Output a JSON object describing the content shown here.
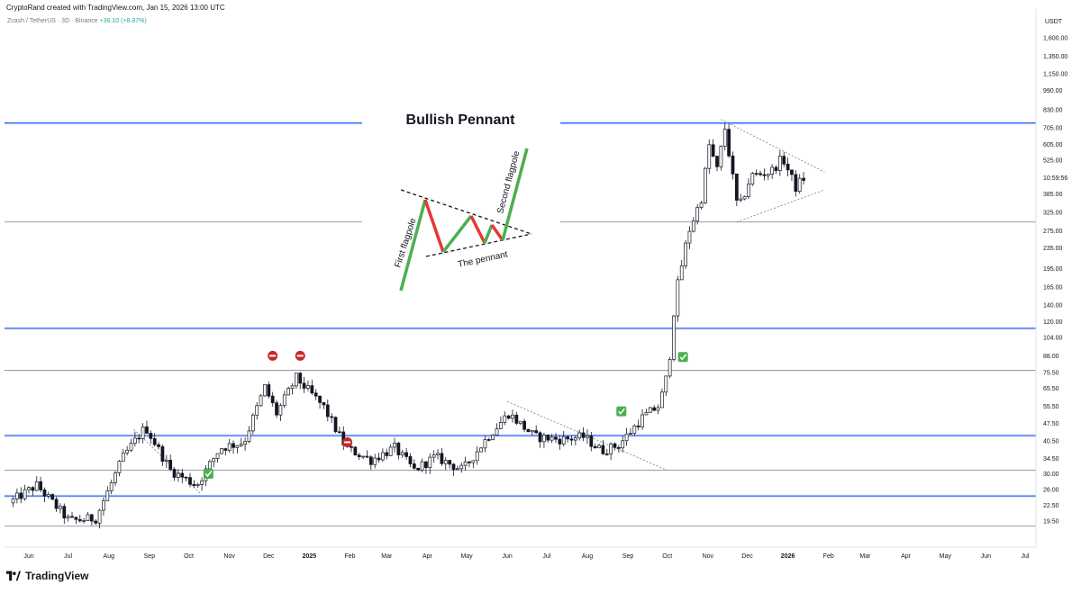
{
  "header": {
    "credit": "CryptoRand created with TradingView.com, Jan 15, 2026 13:00 UTC",
    "symbol": "Zcash / TetherUS · 3D · Binance",
    "change": "+36.10 (+8.87%)"
  },
  "footer": {
    "logo_text": "TradingView"
  },
  "annotation": {
    "title": "Bullish Pennant",
    "first_flagpole": "First flagpole",
    "second_flagpole": "Second flagpole",
    "pennant": "The pennant"
  },
  "colors": {
    "up_candle": "#ffffff",
    "down_candle": "#131722",
    "blue_level": "#2962ff",
    "gray_level": "#787b86",
    "flagpole_green": "#4caf50",
    "pennant_red": "#e53935",
    "marker_red": "#c62828",
    "check_green": "#4caf50"
  },
  "chart_data": {
    "type": "candlestick",
    "symbol": "Zcash / TetherUS",
    "interval": "3D",
    "exchange": "Binance",
    "currency_label": "USDT",
    "scale": "log",
    "ylim": [
      17,
      1850
    ],
    "price_ticks": [
      "1,600.00",
      "1,350.00",
      "1,150.00",
      "990.00",
      "830.00",
      "705.00",
      "605.00",
      "525.00",
      "10:59:56",
      "385.00",
      "325.00",
      "275.00",
      "235.00",
      "195.00",
      "165.00",
      "140.00",
      "120.00",
      "104.00",
      "88.00",
      "75.50",
      "65.50",
      "55.50",
      "47.50",
      "40.50",
      "34.50",
      "30.00",
      "26.00",
      "22.50",
      "19.50"
    ],
    "price_tick_values": [
      1600,
      1350,
      1150,
      990,
      830,
      705,
      605,
      525,
      447,
      385,
      325,
      275,
      235,
      195,
      165,
      140,
      120,
      104,
      88,
      75.5,
      65.5,
      55.5,
      47.5,
      40.5,
      34.5,
      30,
      26,
      22.5,
      19.5
    ],
    "time_ticks": [
      {
        "label": "Jun",
        "date": "2024-06-01"
      },
      {
        "label": "Jul",
        "date": "2024-07-01"
      },
      {
        "label": "Aug",
        "date": "2024-08-01"
      },
      {
        "label": "Sep",
        "date": "2024-09-01"
      },
      {
        "label": "Oct",
        "date": "2024-10-01"
      },
      {
        "label": "Nov",
        "date": "2024-11-01"
      },
      {
        "label": "Dec",
        "date": "2024-12-01"
      },
      {
        "label": "2025",
        "date": "2025-01-01",
        "bold": true
      },
      {
        "label": "Feb",
        "date": "2025-02-01"
      },
      {
        "label": "Mar",
        "date": "2025-03-01"
      },
      {
        "label": "Apr",
        "date": "2025-04-01"
      },
      {
        "label": "May",
        "date": "2025-05-01"
      },
      {
        "label": "Jun",
        "date": "2025-06-01"
      },
      {
        "label": "Jul",
        "date": "2025-07-01"
      },
      {
        "label": "Aug",
        "date": "2025-08-01"
      },
      {
        "label": "Sep",
        "date": "2025-09-01"
      },
      {
        "label": "Oct",
        "date": "2025-10-01"
      },
      {
        "label": "Nov",
        "date": "2025-11-01"
      },
      {
        "label": "Dec",
        "date": "2025-12-01"
      },
      {
        "label": "2026",
        "date": "2026-01-01",
        "bold": true
      },
      {
        "label": "Feb",
        "date": "2026-02-01"
      },
      {
        "label": "Mar",
        "date": "2026-03-01"
      },
      {
        "label": "Apr",
        "date": "2026-04-01"
      },
      {
        "label": "May",
        "date": "2026-05-01"
      },
      {
        "label": "Jun",
        "date": "2026-06-01"
      },
      {
        "label": "Jul",
        "date": "2026-07-01"
      }
    ],
    "horizontal_levels": [
      {
        "price": 735,
        "style": "blue",
        "scope": "split"
      },
      {
        "price": 298,
        "style": "gray",
        "scope": "split"
      },
      {
        "price": 113,
        "style": "blue",
        "scope": "full"
      },
      {
        "price": 77,
        "style": "gray",
        "scope": "full"
      },
      {
        "price": 42.5,
        "style": "blue",
        "scope": "full"
      },
      {
        "price": 31,
        "style": "gray",
        "scope": "full"
      },
      {
        "price": 24.5,
        "style": "blue",
        "scope": "full"
      },
      {
        "price": 18.6,
        "style": "gray",
        "scope": "full"
      }
    ],
    "trendlines": [
      {
        "from": [
          "2024-08-20",
          45
        ],
        "to": [
          "2024-10-10",
          25
        ]
      },
      {
        "from": [
          "2025-06-01",
          58
        ],
        "to": [
          "2025-10-01",
          31
        ]
      },
      {
        "from": [
          "2025-11-11",
          760
        ],
        "to": [
          "2026-01-29",
          470
        ]
      },
      {
        "from": [
          "2025-11-23",
          298
        ],
        "to": [
          "2026-01-29",
          400
        ]
      }
    ],
    "markers": [
      {
        "type": "sell",
        "date": "2024-12-04",
        "price": 88
      },
      {
        "type": "sell",
        "date": "2024-12-25",
        "price": 88
      },
      {
        "type": "sell",
        "date": "2025-01-30",
        "price": 40
      },
      {
        "type": "buy",
        "date": "2024-10-16",
        "price": 30
      },
      {
        "type": "buy",
        "date": "2025-08-27",
        "price": 53
      },
      {
        "type": "buy",
        "date": "2025-10-13",
        "price": 87
      }
    ],
    "anchors": [
      [
        "2024-05-20",
        23
      ],
      [
        "2024-06-10",
        27
      ],
      [
        "2024-07-05",
        19.5
      ],
      [
        "2024-07-25",
        20
      ],
      [
        "2024-08-15",
        35
      ],
      [
        "2024-09-01",
        46
      ],
      [
        "2024-09-20",
        31
      ],
      [
        "2024-10-10",
        27
      ],
      [
        "2024-10-28",
        38
      ],
      [
        "2024-11-15",
        40
      ],
      [
        "2024-12-01",
        66
      ],
      [
        "2024-12-10",
        52
      ],
      [
        "2024-12-25",
        72
      ],
      [
        "2025-01-15",
        55
      ],
      [
        "2025-02-01",
        38
      ],
      [
        "2025-02-20",
        34
      ],
      [
        "2025-03-10",
        38
      ],
      [
        "2025-03-25",
        31
      ],
      [
        "2025-04-10",
        35
      ],
      [
        "2025-05-01",
        31
      ],
      [
        "2025-05-20",
        42
      ],
      [
        "2025-06-05",
        52
      ],
      [
        "2025-06-25",
        42
      ],
      [
        "2025-07-15",
        41
      ],
      [
        "2025-08-01",
        42
      ],
      [
        "2025-08-15",
        37
      ],
      [
        "2025-08-28",
        39
      ],
      [
        "2025-09-15",
        50
      ],
      [
        "2025-09-28",
        56
      ],
      [
        "2025-10-05",
        78
      ],
      [
        "2025-10-10",
        150
      ],
      [
        "2025-10-20",
        270
      ],
      [
        "2025-10-30",
        370
      ],
      [
        "2025-11-05",
        600
      ],
      [
        "2025-11-11",
        480
      ],
      [
        "2025-11-17",
        700
      ],
      [
        "2025-11-27",
        330
      ],
      [
        "2025-12-07",
        455
      ],
      [
        "2025-12-22",
        470
      ],
      [
        "2025-12-31",
        535
      ],
      [
        "2026-01-10",
        408
      ],
      [
        "2026-01-15",
        444
      ]
    ]
  }
}
